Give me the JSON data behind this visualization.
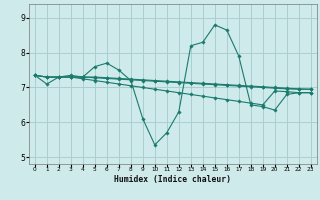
{
  "xlabel": "Humidex (Indice chaleur)",
  "ylabel": "",
  "background_color": "#ceeaea",
  "grid_color": "#aacece",
  "line_color": "#1a7a6e",
  "xlim": [
    -0.5,
    23.5
  ],
  "ylim": [
    4.8,
    9.4
  ],
  "yticks": [
    5,
    6,
    7,
    8,
    9
  ],
  "xticks": [
    0,
    1,
    2,
    3,
    4,
    5,
    6,
    7,
    8,
    9,
    10,
    11,
    12,
    13,
    14,
    15,
    16,
    17,
    18,
    19,
    20,
    21,
    22,
    23
  ],
  "series": [
    [
      7.35,
      7.1,
      7.3,
      7.35,
      7.3,
      7.6,
      7.7,
      7.5,
      7.2,
      6.1,
      5.35,
      5.7,
      6.3,
      8.2,
      8.3,
      8.8,
      8.65,
      7.9,
      6.5,
      6.45,
      6.35,
      6.8,
      6.85,
      6.85
    ],
    [
      7.35,
      7.3,
      7.3,
      7.3,
      7.25,
      7.2,
      7.15,
      7.1,
      7.05,
      7.0,
      6.95,
      6.9,
      6.85,
      6.8,
      6.75,
      6.7,
      6.65,
      6.6,
      6.55,
      6.5,
      6.9,
      6.88,
      6.85,
      6.85
    ],
    [
      7.35,
      7.3,
      7.3,
      7.3,
      7.3,
      7.28,
      7.26,
      7.24,
      7.22,
      7.2,
      7.18,
      7.16,
      7.14,
      7.12,
      7.1,
      7.08,
      7.06,
      7.04,
      7.02,
      7.0,
      6.98,
      6.96,
      6.95,
      6.95
    ],
    [
      7.35,
      7.3,
      7.3,
      7.3,
      7.3,
      7.3,
      7.28,
      7.26,
      7.24,
      7.22,
      7.2,
      7.18,
      7.16,
      7.14,
      7.12,
      7.1,
      7.08,
      7.06,
      7.04,
      7.02,
      7.0,
      6.98,
      6.96,
      6.95
    ]
  ]
}
